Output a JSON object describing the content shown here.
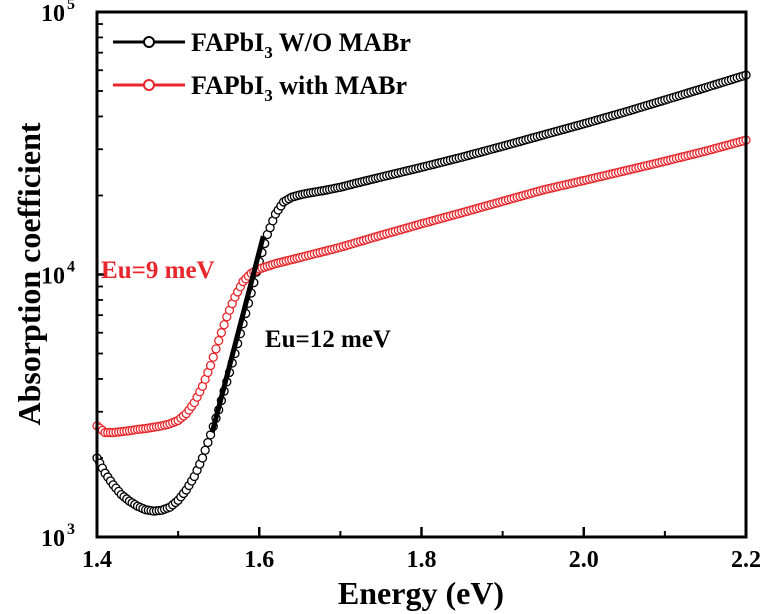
{
  "chart_data": {
    "type": "scatter",
    "xlabel": "Energy (eV)",
    "ylabel": "Absorption coefficient",
    "xlim": [
      1.4,
      2.2
    ],
    "ylim": [
      1000,
      100000
    ],
    "yscale": "log",
    "x_ticks": [
      {
        "value": 1.4,
        "label": "1.4"
      },
      {
        "value": 1.6,
        "label": "1.6"
      },
      {
        "value": 1.8,
        "label": "1.8"
      },
      {
        "value": 2.0,
        "label": "2.0"
      },
      {
        "value": 2.2,
        "label": "2.2"
      }
    ],
    "y_ticks": [
      {
        "value": 1000,
        "base": "10",
        "exp": "3"
      },
      {
        "value": 10000,
        "base": "10",
        "exp": "4"
      },
      {
        "value": 100000,
        "base": "10",
        "exp": "5"
      }
    ],
    "legend": {
      "position": "top-left",
      "entries": [
        {
          "pre": "FAPbI",
          "sub": "3",
          "post": " W/O MABr",
          "color": "#000000"
        },
        {
          "pre": "FAPbI",
          "sub": "3",
          "post": " with MABr",
          "color": "#e8262b"
        }
      ]
    },
    "series": [
      {
        "name": "FAPbI3 W/O MABr",
        "color": "#000000",
        "points": [
          [
            1.4,
            2000
          ],
          [
            1.41,
            1750
          ],
          [
            1.42,
            1580
          ],
          [
            1.43,
            1450
          ],
          [
            1.44,
            1370
          ],
          [
            1.45,
            1310
          ],
          [
            1.46,
            1270
          ],
          [
            1.47,
            1255
          ],
          [
            1.48,
            1265
          ],
          [
            1.49,
            1300
          ],
          [
            1.5,
            1380
          ],
          [
            1.51,
            1510
          ],
          [
            1.52,
            1700
          ],
          [
            1.53,
            2000
          ],
          [
            1.54,
            2450
          ],
          [
            1.55,
            3050
          ],
          [
            1.56,
            3900
          ],
          [
            1.57,
            5000
          ],
          [
            1.58,
            6500
          ],
          [
            1.59,
            8500
          ],
          [
            1.6,
            11200
          ],
          [
            1.61,
            14200
          ],
          [
            1.62,
            17000
          ],
          [
            1.63,
            18900
          ],
          [
            1.64,
            19700
          ],
          [
            1.65,
            20100
          ],
          [
            1.66,
            20400
          ],
          [
            1.68,
            20900
          ],
          [
            1.7,
            21500
          ],
          [
            1.72,
            22300
          ],
          [
            1.75,
            23500
          ],
          [
            1.8,
            25600
          ],
          [
            1.85,
            28000
          ],
          [
            1.9,
            30800
          ],
          [
            1.95,
            34000
          ],
          [
            2.0,
            37500
          ],
          [
            2.05,
            41500
          ],
          [
            2.1,
            46200
          ],
          [
            2.15,
            51500
          ],
          [
            2.2,
            57500
          ]
        ]
      },
      {
        "name": "FAPbI3 with MABr",
        "color": "#e8262b",
        "points": [
          [
            1.4,
            2650
          ],
          [
            1.41,
            2500
          ],
          [
            1.42,
            2500
          ],
          [
            1.43,
            2520
          ],
          [
            1.44,
            2540
          ],
          [
            1.45,
            2570
          ],
          [
            1.46,
            2590
          ],
          [
            1.47,
            2620
          ],
          [
            1.48,
            2650
          ],
          [
            1.49,
            2700
          ],
          [
            1.5,
            2780
          ],
          [
            1.51,
            2950
          ],
          [
            1.52,
            3250
          ],
          [
            1.53,
            3750
          ],
          [
            1.54,
            4500
          ],
          [
            1.55,
            5600
          ],
          [
            1.56,
            6900
          ],
          [
            1.57,
            8200
          ],
          [
            1.58,
            9400
          ],
          [
            1.59,
            10100
          ],
          [
            1.6,
            10500
          ],
          [
            1.62,
            11000
          ],
          [
            1.65,
            11600
          ],
          [
            1.7,
            12700
          ],
          [
            1.75,
            14100
          ],
          [
            1.8,
            15600
          ],
          [
            1.85,
            17200
          ],
          [
            1.9,
            19000
          ],
          [
            1.95,
            21000
          ],
          [
            2.0,
            22800
          ],
          [
            2.05,
            24800
          ],
          [
            2.1,
            27000
          ],
          [
            2.15,
            29500
          ],
          [
            2.2,
            32500
          ]
        ]
      }
    ],
    "fit_line": {
      "x": [
        1.542,
        1.605
      ],
      "y": [
        2500,
        14000
      ],
      "color": "#000000"
    },
    "annotations": [
      {
        "text": "Eu=9 meV",
        "color": "#e8262b",
        "x": 1.405,
        "y": 9700
      },
      {
        "text": "Eu=12 meV",
        "color": "#000000",
        "x": 1.607,
        "y": 5300
      }
    ]
  }
}
